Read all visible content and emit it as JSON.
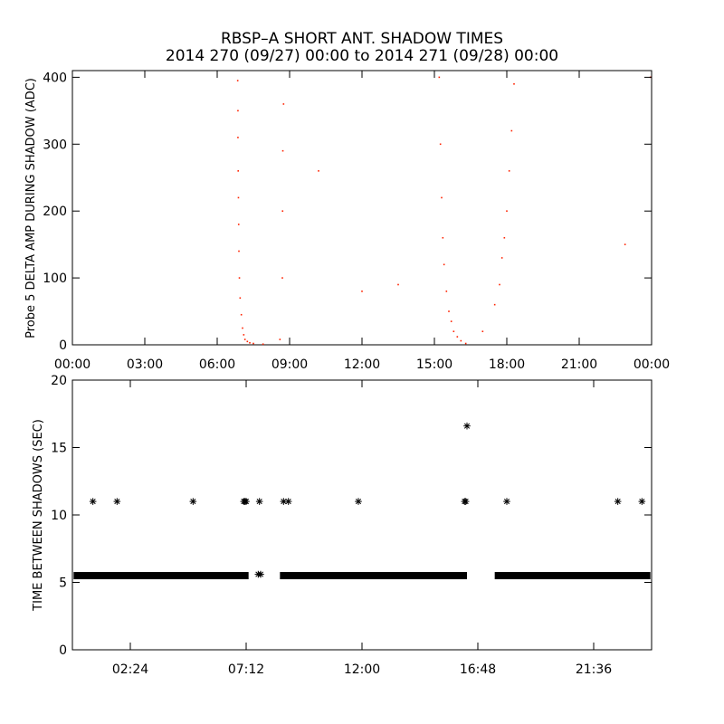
{
  "title_line1": "RBSP–A SHORT ANT. SHADOW TIMES",
  "title_line2": "2014 270 (09/27) 00:00 to 2014 271 (09/28) 00:00",
  "chart_data": [
    {
      "type": "scatter",
      "ylabel": "Probe 5 DELTA AMP DURING SHADOW (ADC)",
      "xlim": [
        0,
        24
      ],
      "ylim": [
        0,
        410
      ],
      "x_tick_labels": [
        "00:00",
        "03:00",
        "06:00",
        "09:00",
        "12:00",
        "15:00",
        "18:00",
        "21:00",
        "00:00"
      ],
      "y_tick_labels": [
        "0",
        "100",
        "200",
        "300",
        "400"
      ],
      "marker_color": "#ff2200",
      "series": [
        {
          "x": [
            6.85,
            6.86,
            6.86,
            6.87,
            6.88,
            6.89,
            6.9,
            6.92,
            6.95,
            7.0,
            7.05,
            7.1,
            7.15,
            7.25,
            7.35,
            7.5,
            7.9,
            8.6,
            8.7,
            8.71,
            8.72,
            8.75,
            10.2,
            12.0,
            13.5,
            15.2,
            15.25,
            15.3,
            15.35,
            15.4,
            15.5,
            15.6,
            15.7,
            15.8,
            15.95,
            16.1,
            16.3,
            17.0,
            17.5,
            17.7,
            17.8,
            17.9,
            18.0,
            18.1,
            18.2,
            18.3,
            22.9,
            23.95
          ],
          "y": [
            395,
            350,
            310,
            260,
            220,
            180,
            140,
            100,
            70,
            45,
            25,
            15,
            8,
            5,
            3,
            2,
            1,
            8,
            100,
            200,
            290,
            360,
            260,
            80,
            90,
            400,
            300,
            220,
            160,
            120,
            80,
            50,
            35,
            20,
            12,
            6,
            2,
            20,
            60,
            90,
            130,
            160,
            200,
            260,
            320,
            390,
            150,
            400
          ]
        }
      ]
    },
    {
      "type": "scatter",
      "ylabel": "TIME BETWEEN SHADOWS (SEC)",
      "xlim": [
        0,
        24
      ],
      "ylim": [
        0,
        20
      ],
      "x_tick_labels": [
        "02:24",
        "07:12",
        "12:00",
        "16:48",
        "21:36"
      ],
      "y_tick_labels": [
        "0",
        "5",
        "10",
        "15",
        "20"
      ],
      "marker": "*",
      "baseline": {
        "value": 5.5,
        "segments": [
          [
            0.05,
            7.3
          ],
          [
            8.6,
            16.35
          ],
          [
            17.5,
            23.95
          ]
        ]
      },
      "series": [
        {
          "x": [
            0.85,
            1.85,
            5.0,
            7.1,
            7.15,
            7.2,
            7.75,
            8.75,
            8.95,
            11.85,
            16.25,
            16.3,
            16.35,
            18.0,
            22.6,
            23.6,
            7.7,
            7.8
          ],
          "y": [
            11,
            11,
            11,
            11,
            11,
            11,
            11,
            11,
            11,
            11,
            11,
            11,
            16.6,
            11,
            11,
            11,
            5.6,
            5.6
          ]
        }
      ]
    }
  ]
}
